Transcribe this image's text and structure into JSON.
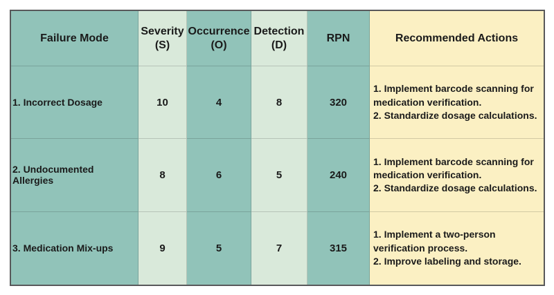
{
  "colors": {
    "teal": "#91c3b9",
    "light_green": "#d9e9da",
    "cream_yellow": "#fbf0c3",
    "outer_border": "#58585a",
    "text": "#1a1a1a"
  },
  "table": {
    "header": {
      "failure_mode": "Failure Mode",
      "severity": "Severity\n(S)",
      "occurrence": "Occurrence\n(O)",
      "detection": "Detection\n(D)",
      "rpn": "RPN",
      "actions": "Recommended Actions"
    },
    "rows": [
      {
        "failure_mode": "1. Incorrect Dosage",
        "severity": "10",
        "occurrence": "4",
        "detection": "8",
        "rpn": "320",
        "actions": "1. Implement barcode scanning for\nmedication verification.\n2. Standardize dosage calculations."
      },
      {
        "failure_mode": "2. Undocumented Allergies",
        "severity": "8",
        "occurrence": "6",
        "detection": "5",
        "rpn": "240",
        "actions": "1. Implement barcode scanning for\nmedication verification.\n2. Standardize dosage calculations."
      },
      {
        "failure_mode": "3. Medication Mix-ups",
        "severity": "9",
        "occurrence": "5",
        "detection": "7",
        "rpn": "315",
        "actions": "1. Implement a two-person\nverification process.\n2. Improve labeling and storage."
      }
    ]
  }
}
